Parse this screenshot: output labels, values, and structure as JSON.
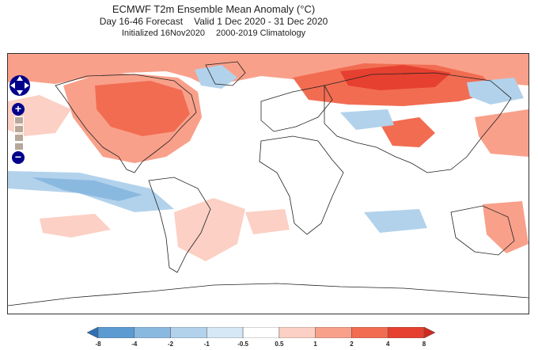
{
  "header": {
    "title": "ECMWF T2m Ensemble Mean Anomaly (°C)",
    "subtitle_left": "Day 16-46 Forecast",
    "subtitle_right": "Valid 1 Dec 2020 - 31 Dec 2020",
    "info_left": "Initialized 16Nov2020",
    "info_right": "2000-2019 Climatology"
  },
  "legend": {
    "ticks": [
      "-8",
      "-4",
      "-2",
      "-1",
      "-0.5",
      "0.5",
      "1",
      "2",
      "4",
      "8"
    ],
    "colors": [
      "#2f6fb2",
      "#5b9bd1",
      "#8ab9e0",
      "#b2d2ec",
      "#d6e7f5",
      "#ffffff",
      "#fcd0c4",
      "#f9a08a",
      "#f26c52",
      "#e64030",
      "#cf2a22"
    ]
  },
  "controls": {
    "zoom_in": "+",
    "zoom_out": "−"
  }
}
